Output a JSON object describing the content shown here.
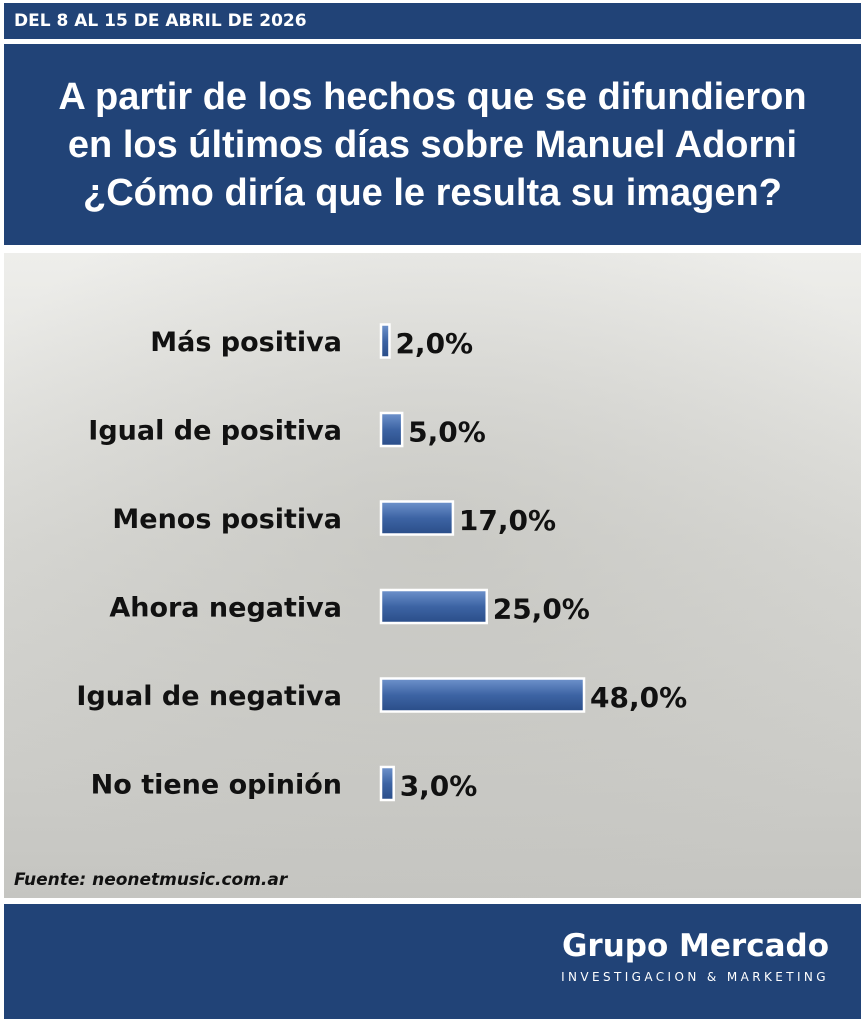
{
  "header": {
    "date_range": "DEL 8 AL 15 DE ABRIL DE 2026"
  },
  "title_lines": [
    "A partir de los hechos que se difundieron",
    "en los últimos días sobre Manuel Adorni",
    "¿Cómo diría que le resulta su imagen?"
  ],
  "chart_data": {
    "type": "bar",
    "orientation": "horizontal",
    "title": "",
    "xlabel": "",
    "ylabel": "",
    "categories": [
      "Más positiva",
      "Igual de positiva",
      "Menos positiva",
      "Ahora negativa",
      "Igual de negativa",
      "No tiene opinión"
    ],
    "values": [
      2.0,
      5.0,
      17.0,
      25.0,
      48.0,
      3.0
    ],
    "value_labels": [
      "2,0%",
      "5,0%",
      "17,0%",
      "25,0%",
      "48,0%",
      "3,0%"
    ],
    "unit": "%",
    "xlim": [
      0,
      48
    ],
    "grid": false,
    "legend": "none",
    "bar_color": "#3d64a4"
  },
  "source": "Fuente: neonetmusic.com.ar",
  "brand": {
    "name": "Grupo Mercado",
    "tagline": "INVESTIGACION & MARKETING"
  },
  "colors": {
    "navy": "#214377",
    "bar": "#3d64a4",
    "bar_highlight": "#6f93cc",
    "text": "#111111"
  }
}
